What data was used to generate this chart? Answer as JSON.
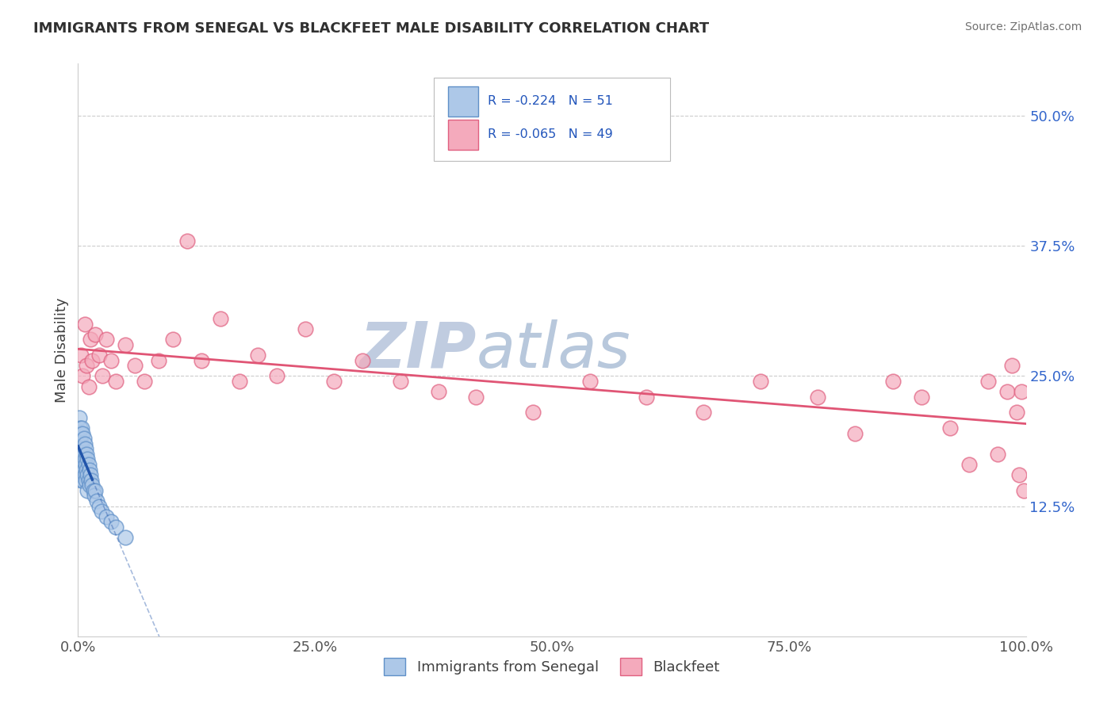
{
  "title": "IMMIGRANTS FROM SENEGAL VS BLACKFEET MALE DISABILITY CORRELATION CHART",
  "source": "Source: ZipAtlas.com",
  "ylabel": "Male Disability",
  "legend_blue_label": "Immigrants from Senegal",
  "legend_pink_label": "Blackfeet",
  "legend_blue_R": "R = -0.224",
  "legend_blue_N": "N = 51",
  "legend_pink_R": "R = -0.065",
  "legend_pink_N": "N = 49",
  "blue_fill_color": "#adc8e8",
  "blue_edge_color": "#6090c8",
  "pink_fill_color": "#f4aabc",
  "pink_edge_color": "#e06080",
  "blue_line_color": "#2255aa",
  "pink_line_color": "#e05575",
  "xlim": [
    0.0,
    1.0
  ],
  "ylim": [
    0.0,
    0.55
  ],
  "yticks": [
    0.125,
    0.25,
    0.375,
    0.5
  ],
  "ytick_labels": [
    "12.5%",
    "25.0%",
    "37.5%",
    "50.0%"
  ],
  "xticks": [
    0.0,
    0.25,
    0.5,
    0.75,
    1.0
  ],
  "xtick_labels": [
    "0.0%",
    "25.0%",
    "50.0%",
    "75.0%",
    "100.0%"
  ],
  "blue_scatter_x": [
    0.0005,
    0.001,
    0.001,
    0.001,
    0.002,
    0.002,
    0.002,
    0.002,
    0.003,
    0.003,
    0.003,
    0.003,
    0.004,
    0.004,
    0.004,
    0.004,
    0.005,
    0.005,
    0.005,
    0.005,
    0.006,
    0.006,
    0.006,
    0.007,
    0.007,
    0.007,
    0.008,
    0.008,
    0.008,
    0.009,
    0.009,
    0.01,
    0.01,
    0.01,
    0.011,
    0.011,
    0.012,
    0.012,
    0.013,
    0.014,
    0.015,
    0.016,
    0.017,
    0.018,
    0.02,
    0.022,
    0.025,
    0.03,
    0.035,
    0.04,
    0.05
  ],
  "blue_scatter_y": [
    0.185,
    0.19,
    0.175,
    0.21,
    0.2,
    0.185,
    0.17,
    0.155,
    0.195,
    0.18,
    0.165,
    0.15,
    0.2,
    0.185,
    0.17,
    0.155,
    0.195,
    0.18,
    0.165,
    0.15,
    0.19,
    0.175,
    0.16,
    0.185,
    0.17,
    0.155,
    0.18,
    0.165,
    0.15,
    0.175,
    0.16,
    0.17,
    0.155,
    0.14,
    0.165,
    0.15,
    0.16,
    0.145,
    0.155,
    0.15,
    0.145,
    0.14,
    0.135,
    0.14,
    0.13,
    0.125,
    0.12,
    0.115,
    0.11,
    0.105,
    0.095
  ],
  "pink_scatter_x": [
    0.003,
    0.005,
    0.007,
    0.009,
    0.011,
    0.013,
    0.015,
    0.018,
    0.022,
    0.026,
    0.03,
    0.035,
    0.04,
    0.05,
    0.06,
    0.07,
    0.085,
    0.1,
    0.115,
    0.13,
    0.15,
    0.17,
    0.19,
    0.21,
    0.24,
    0.27,
    0.3,
    0.34,
    0.38,
    0.42,
    0.48,
    0.54,
    0.6,
    0.66,
    0.72,
    0.78,
    0.82,
    0.86,
    0.89,
    0.92,
    0.94,
    0.96,
    0.97,
    0.98,
    0.985,
    0.99,
    0.993,
    0.995,
    0.998
  ],
  "pink_scatter_y": [
    0.27,
    0.25,
    0.3,
    0.26,
    0.24,
    0.285,
    0.265,
    0.29,
    0.27,
    0.25,
    0.285,
    0.265,
    0.245,
    0.28,
    0.26,
    0.245,
    0.265,
    0.285,
    0.38,
    0.265,
    0.305,
    0.245,
    0.27,
    0.25,
    0.295,
    0.245,
    0.265,
    0.245,
    0.235,
    0.23,
    0.215,
    0.245,
    0.23,
    0.215,
    0.245,
    0.23,
    0.195,
    0.245,
    0.23,
    0.2,
    0.165,
    0.245,
    0.175,
    0.235,
    0.26,
    0.215,
    0.155,
    0.235,
    0.14
  ],
  "background_color": "#ffffff",
  "grid_color": "#cccccc",
  "watermark_zip_color": "#c0cce0",
  "watermark_atlas_color": "#b8c8dc",
  "watermark_fontsize": 58,
  "legend_text_color": "#2255bb",
  "tick_label_color_right": "#3366cc",
  "tick_label_color_bottom": "#555555"
}
